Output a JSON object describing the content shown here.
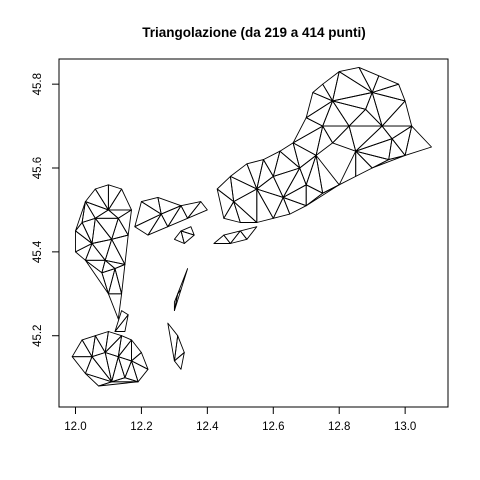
{
  "chart_data": {
    "type": "triangulation",
    "title": "Triangolazione (da 219 a 414 punti)",
    "xlabel": "",
    "ylabel": "",
    "xlim": [
      11.95,
      13.13
    ],
    "ylim": [
      45.03,
      45.86
    ],
    "x_ticks": [
      12.0,
      12.2,
      12.4,
      12.6,
      12.8,
      13.0
    ],
    "x_tick_labels": [
      "12.0",
      "12.2",
      "12.4",
      "12.6",
      "12.8",
      "13.0"
    ],
    "y_ticks": [
      45.2,
      45.4,
      45.6,
      45.8
    ],
    "y_tick_labels": [
      "45.2",
      "45.4",
      "45.6",
      "45.8"
    ],
    "grid": false,
    "legend": "none",
    "line_color": "#000000",
    "regions": [
      {
        "name": "",
        "points": [
          [
            12.0,
            45.45
          ],
          [
            12.03,
            45.52
          ],
          [
            12.06,
            45.55
          ],
          [
            12.1,
            45.56
          ],
          [
            12.14,
            45.55
          ],
          [
            12.17,
            45.5
          ],
          [
            12.16,
            45.44
          ],
          [
            12.15,
            45.37
          ],
          [
            12.14,
            45.3
          ],
          [
            12.13,
            45.24
          ],
          [
            12.1,
            45.3
          ],
          [
            12.08,
            45.35
          ],
          [
            12.03,
            45.38
          ],
          [
            12.0,
            45.4
          ],
          [
            12.06,
            45.48
          ],
          [
            12.1,
            45.5
          ],
          [
            12.05,
            45.42
          ],
          [
            12.11,
            45.43
          ],
          [
            12.09,
            45.38
          ],
          [
            12.12,
            45.36
          ],
          [
            12.13,
            45.48
          ],
          [
            12.02,
            45.47
          ]
        ]
      },
      {
        "name": "",
        "points": [
          [
            12.18,
            45.46
          ],
          [
            12.2,
            45.52
          ],
          [
            12.25,
            45.53
          ],
          [
            12.32,
            45.51
          ],
          [
            12.38,
            45.52
          ],
          [
            12.4,
            45.5
          ],
          [
            12.34,
            45.48
          ],
          [
            12.28,
            45.46
          ],
          [
            12.22,
            45.44
          ],
          [
            12.26,
            45.49
          ]
        ]
      },
      {
        "name": "",
        "points": [
          [
            12.43,
            45.55
          ],
          [
            12.47,
            45.58
          ],
          [
            12.52,
            45.61
          ],
          [
            12.57,
            45.62
          ],
          [
            12.62,
            45.64
          ],
          [
            12.66,
            45.66
          ],
          [
            12.7,
            45.72
          ],
          [
            12.72,
            45.78
          ],
          [
            12.75,
            45.8
          ],
          [
            12.8,
            45.83
          ],
          [
            12.86,
            45.84
          ],
          [
            12.92,
            45.82
          ],
          [
            12.98,
            45.8
          ],
          [
            13.0,
            45.76
          ],
          [
            13.02,
            45.7
          ],
          [
            13.08,
            45.65
          ],
          [
            13.0,
            45.63
          ],
          [
            12.95,
            45.62
          ],
          [
            12.9,
            45.6
          ],
          [
            12.85,
            45.58
          ],
          [
            12.8,
            45.56
          ],
          [
            12.75,
            45.54
          ],
          [
            12.7,
            45.51
          ],
          [
            12.65,
            45.49
          ],
          [
            12.6,
            45.48
          ],
          [
            12.55,
            45.47
          ],
          [
            12.5,
            45.47
          ],
          [
            12.45,
            45.48
          ],
          [
            12.55,
            45.55
          ],
          [
            12.6,
            45.58
          ],
          [
            12.68,
            45.6
          ],
          [
            12.73,
            45.63
          ],
          [
            12.78,
            45.66
          ],
          [
            12.83,
            45.7
          ],
          [
            12.88,
            45.74
          ],
          [
            12.93,
            45.7
          ],
          [
            12.96,
            45.67
          ],
          [
            12.85,
            45.64
          ],
          [
            12.78,
            45.76
          ],
          [
            12.7,
            45.56
          ],
          [
            12.63,
            45.53
          ],
          [
            12.9,
            45.78
          ],
          [
            12.48,
            45.52
          ],
          [
            12.75,
            45.7
          ]
        ]
      },
      {
        "name": "",
        "points": [
          [
            12.42,
            45.42
          ],
          [
            12.45,
            45.44
          ],
          [
            12.5,
            45.45
          ],
          [
            12.55,
            45.46
          ],
          [
            12.47,
            45.42
          ],
          [
            12.52,
            45.43
          ]
        ]
      },
      {
        "name": "",
        "points": [
          [
            11.99,
            45.15
          ],
          [
            12.02,
            45.19
          ],
          [
            12.06,
            45.2
          ],
          [
            12.1,
            45.21
          ],
          [
            12.14,
            45.2
          ],
          [
            12.17,
            45.19
          ],
          [
            12.2,
            45.16
          ],
          [
            12.22,
            45.12
          ],
          [
            12.19,
            45.09
          ],
          [
            12.15,
            45.1
          ],
          [
            12.11,
            45.09
          ],
          [
            12.07,
            45.08
          ],
          [
            12.03,
            45.11
          ],
          [
            12.05,
            45.15
          ],
          [
            12.09,
            45.16
          ],
          [
            12.13,
            45.15
          ],
          [
            12.17,
            45.14
          ]
        ]
      },
      {
        "name": "",
        "points": [
          [
            12.12,
            45.21
          ],
          [
            12.14,
            45.26
          ],
          [
            12.16,
            45.25
          ],
          [
            12.15,
            45.21
          ]
        ]
      },
      {
        "name": "",
        "points": [
          [
            12.28,
            45.23
          ],
          [
            12.3,
            45.14
          ],
          [
            12.32,
            45.12
          ],
          [
            12.33,
            45.16
          ],
          [
            12.31,
            45.2
          ]
        ]
      },
      {
        "name": "",
        "points": [
          [
            12.3,
            45.26
          ],
          [
            12.32,
            45.31
          ],
          [
            12.34,
            45.36
          ],
          [
            12.31,
            45.3
          ],
          [
            12.3,
            45.28
          ]
        ]
      },
      {
        "name": "",
        "points": [
          [
            12.3,
            45.43
          ],
          [
            12.33,
            45.42
          ],
          [
            12.36,
            45.44
          ],
          [
            12.35,
            45.46
          ],
          [
            12.32,
            45.45
          ]
        ]
      }
    ]
  }
}
